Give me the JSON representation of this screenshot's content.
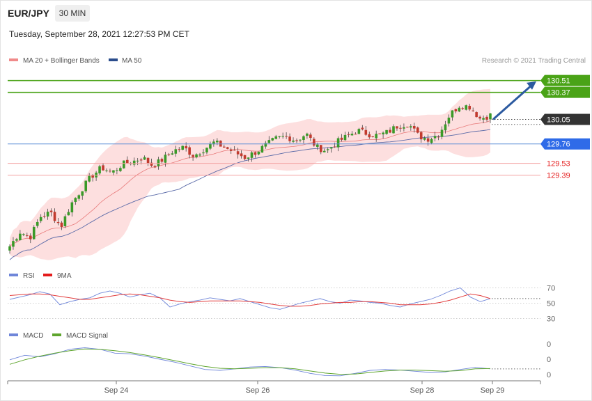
{
  "header": {
    "pair": "EUR/JPY",
    "timeframe": "30 MIN",
    "datetime": "Tuesday, September 28, 2021 12:27:53 PM CET"
  },
  "legend": {
    "ma20_bb": "MA 20 + Bollinger Bands",
    "ma50": "MA 50",
    "credit": "Research © 2021 Trading Central",
    "rsi": "RSI",
    "rsi_ma": "9MA",
    "macd": "MACD",
    "macd_signal": "MACD Signal"
  },
  "colors": {
    "resistance": "#4aa317",
    "support_blue": "#2f6be8",
    "support_red": "#e41b1b",
    "current": "#333333",
    "candle_up": "#3a9a28",
    "candle_down": "#c23a2e",
    "bollinger_fill": "#fdd9d9",
    "ma20": "#e87a7a",
    "ma50": "#5a6aa8",
    "rsi_line": "#6f86d9",
    "rsi_ma": "#e23c3c",
    "macd_line": "#6f86d9",
    "macd_signal": "#5ea52d",
    "arrow": "#2c5aa0"
  },
  "chart_data": {
    "type": "candlestick",
    "price_range": [
      128.35,
      130.68
    ],
    "x_ticks": [
      "Sep 24",
      "Sep 26",
      "Sep 28",
      "Sep 29"
    ],
    "levels": [
      {
        "value": 130.51,
        "label": "130.51",
        "kind": "resistance"
      },
      {
        "value": 130.37,
        "label": "130.37",
        "kind": "resistance"
      },
      {
        "value": 130.05,
        "label": "130.05",
        "kind": "current"
      },
      {
        "value": 129.76,
        "label": "129.76",
        "kind": "support"
      },
      {
        "value": 129.53,
        "label": "129.53",
        "kind": "support-minor"
      },
      {
        "value": 129.39,
        "label": "129.39",
        "kind": "support-minor"
      }
    ],
    "close_path": [
      128.55,
      128.72,
      128.66,
      128.9,
      128.95,
      128.78,
      129.05,
      129.22,
      129.38,
      129.48,
      129.42,
      129.52,
      129.55,
      129.6,
      129.5,
      129.58,
      129.68,
      129.72,
      129.62,
      129.7,
      129.78,
      129.72,
      129.66,
      129.6,
      129.66,
      129.74,
      129.82,
      129.85,
      129.8,
      129.88,
      129.72,
      129.68,
      129.78,
      129.85,
      129.92,
      129.88,
      129.86,
      129.9,
      129.98,
      130.0,
      129.85,
      129.82,
      129.88,
      130.1,
      130.22,
      130.2,
      130.06,
      130.1
    ],
    "rsi": {
      "scale_labels": [
        "70",
        "50",
        "30"
      ],
      "scale_values": [
        70,
        50,
        30
      ],
      "rsi_values": [
        55,
        58,
        61,
        65,
        62,
        48,
        52,
        55,
        57,
        63,
        66,
        63,
        58,
        61,
        63,
        57,
        45,
        49,
        52,
        54,
        57,
        55,
        53,
        56,
        52,
        48,
        44,
        42,
        46,
        50,
        53,
        56,
        52,
        50,
        54,
        53,
        51,
        50,
        47,
        45,
        49,
        52,
        55,
        60,
        66,
        70,
        58,
        52,
        56
      ],
      "ma_values": [
        60,
        61,
        62,
        62,
        61,
        59,
        57,
        55,
        55,
        57,
        59,
        61,
        62,
        61,
        59,
        57,
        54,
        52,
        51,
        52,
        53,
        53,
        53,
        53,
        52,
        51,
        49,
        47,
        46,
        46,
        47,
        49,
        50,
        51,
        51,
        52,
        52,
        51,
        50,
        48,
        48,
        48,
        49,
        51,
        54,
        58,
        62,
        60,
        56
      ]
    },
    "macd": {
      "scale_labels": [
        "0",
        "0",
        "0"
      ],
      "macd_values": [
        0.6,
        0.75,
        0.7,
        0.8,
        0.95,
        1.0,
        0.95,
        0.82,
        0.8,
        0.72,
        0.62,
        0.52,
        0.4,
        0.28,
        0.25,
        0.3,
        0.36,
        0.38,
        0.34,
        0.26,
        0.15,
        0.08,
        0.07,
        0.15,
        0.25,
        0.28,
        0.26,
        0.22,
        0.18,
        0.2,
        0.28,
        0.35,
        0.3
      ],
      "signal_values": [
        0.45,
        0.6,
        0.72,
        0.82,
        0.9,
        0.96,
        0.95,
        0.9,
        0.84,
        0.76,
        0.67,
        0.57,
        0.47,
        0.38,
        0.32,
        0.3,
        0.32,
        0.34,
        0.34,
        0.3,
        0.23,
        0.16,
        0.12,
        0.13,
        0.18,
        0.23,
        0.26,
        0.26,
        0.24,
        0.22,
        0.24,
        0.3,
        0.31
      ]
    }
  }
}
